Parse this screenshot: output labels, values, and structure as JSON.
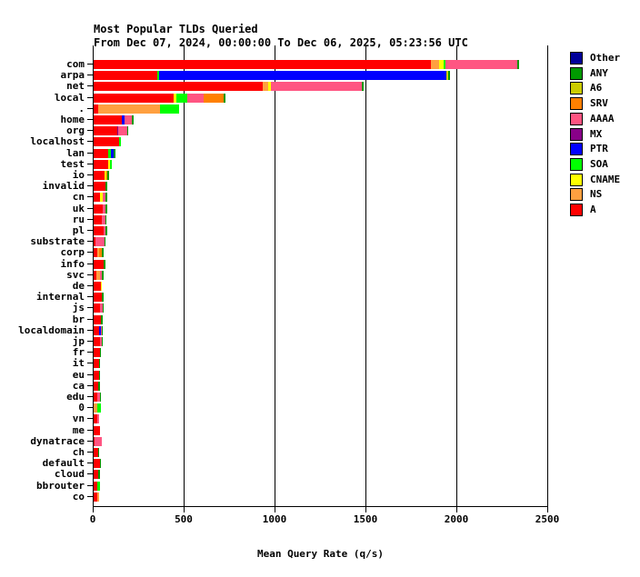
{
  "header": {
    "title": "Most Popular TLDs Queried",
    "subtitle": "From Dec 07, 2024, 00:00:00 To Dec 06, 2025, 05:23:56 UTC"
  },
  "chart_data": {
    "type": "bar",
    "orientation": "horizontal",
    "stacked": true,
    "title": "Most Popular TLDs Queried",
    "subtitle": "From Dec 07, 2024, 00:00:00 To Dec 06, 2025, 05:23:56 UTC",
    "xlabel": "Mean Query Rate (q/s)",
    "ylabel": "",
    "xlim": [
      0,
      2500
    ],
    "xticks": [
      0,
      500,
      1000,
      1500,
      2000,
      2500
    ],
    "grid": "vertical black gridlines at each 500 q/s, right plot border at 2500",
    "legend_position": "top-right",
    "legend": [
      {
        "label": "Other",
        "color": "#000099"
      },
      {
        "label": "ANY",
        "color": "#009900"
      },
      {
        "label": "A6",
        "color": "#CCCC00"
      },
      {
        "label": "SRV",
        "color": "#FF8000"
      },
      {
        "label": "AAAA",
        "color": "#FF5582"
      },
      {
        "label": "MX",
        "color": "#880088"
      },
      {
        "label": "PTR",
        "color": "#0000FF"
      },
      {
        "label": "SOA",
        "color": "#00FF00"
      },
      {
        "label": "CNAME",
        "color": "#FFFF00"
      },
      {
        "label": "NS",
        "color": "#FFA040"
      },
      {
        "label": "A",
        "color": "#FF0000"
      }
    ],
    "colors": {
      "A": "#FF0000",
      "NS": "#FFA040",
      "CNAME": "#FFFF00",
      "SOA": "#00FF00",
      "PTR": "#0000FF",
      "MX": "#880088",
      "AAAA": "#FF5582",
      "SRV": "#FF8000",
      "A6": "#CCCC00",
      "ANY": "#009900",
      "Other": "#000099"
    },
    "stack_order": [
      "A",
      "NS",
      "CNAME",
      "SOA",
      "PTR",
      "MX",
      "AAAA",
      "SRV",
      "A6",
      "ANY",
      "Other"
    ],
    "categories": [
      "com",
      "arpa",
      "net",
      "local",
      ".",
      "home",
      "org",
      "localhost",
      "lan",
      "test",
      "io",
      "invalid",
      "cn",
      "uk",
      "ru",
      "pl",
      "substrate",
      "corp",
      "info",
      "svc",
      "de",
      "internal",
      "js",
      "br",
      "localdomain",
      "jp",
      "fr",
      "it",
      "eu",
      "ca",
      "edu",
      "0",
      "vn",
      "me",
      "dynatrace",
      "ch",
      "default",
      "cloud",
      "bbrouter",
      "co"
    ],
    "rows": [
      {
        "tld": "com",
        "segments": [
          [
            "A",
            1855
          ],
          [
            "NS",
            45
          ],
          [
            "CNAME",
            25
          ],
          [
            "SOA",
            8
          ],
          [
            "AAAA",
            398
          ],
          [
            "ANY",
            10
          ]
        ]
      },
      {
        "tld": "arpa",
        "segments": [
          [
            "A",
            350
          ],
          [
            "SOA",
            12
          ],
          [
            "PTR",
            1580
          ],
          [
            "A6",
            8
          ],
          [
            "ANY",
            8
          ]
        ]
      },
      {
        "tld": "net",
        "segments": [
          [
            "A",
            930
          ],
          [
            "NS",
            30
          ],
          [
            "CNAME",
            15
          ],
          [
            "AAAA",
            500
          ],
          [
            "ANY",
            10
          ]
        ]
      },
      {
        "tld": "local",
        "segments": [
          [
            "A",
            440
          ],
          [
            "CNAME",
            15
          ],
          [
            "SOA",
            60
          ],
          [
            "AAAA",
            90
          ],
          [
            "SRV",
            110
          ],
          [
            "ANY",
            10
          ]
        ]
      },
      {
        "tld": ".",
        "segments": [
          [
            "A",
            24
          ],
          [
            "NS",
            342
          ],
          [
            "SOA",
            103
          ]
        ]
      },
      {
        "tld": "home",
        "segments": [
          [
            "A",
            155
          ],
          [
            "PTR",
            15
          ],
          [
            "AAAA",
            40
          ],
          [
            "ANY",
            10
          ]
        ]
      },
      {
        "tld": "org",
        "segments": [
          [
            "A",
            132
          ],
          [
            "MX",
            5
          ],
          [
            "AAAA",
            48
          ],
          [
            "ANY",
            5
          ]
        ]
      },
      {
        "tld": "localhost",
        "segments": [
          [
            "A",
            140
          ],
          [
            "SOA",
            8
          ]
        ]
      },
      {
        "tld": "lan",
        "segments": [
          [
            "A",
            82
          ],
          [
            "SOA",
            11
          ],
          [
            "PTR",
            15
          ],
          [
            "ANY",
            10
          ]
        ]
      },
      {
        "tld": "test",
        "segments": [
          [
            "A",
            82
          ],
          [
            "CNAME",
            8
          ],
          [
            "SOA",
            10
          ]
        ]
      },
      {
        "tld": "io",
        "segments": [
          [
            "A",
            62
          ],
          [
            "CNAME",
            8
          ],
          [
            "SRV",
            5
          ],
          [
            "ANY",
            8
          ]
        ]
      },
      {
        "tld": "invalid",
        "segments": [
          [
            "A",
            67
          ],
          [
            "ANY",
            10
          ]
        ]
      },
      {
        "tld": "cn",
        "segments": [
          [
            "A",
            33
          ],
          [
            "CNAME",
            17
          ],
          [
            "AAAA",
            17
          ],
          [
            "ANY",
            7
          ]
        ]
      },
      {
        "tld": "uk",
        "segments": [
          [
            "A",
            50
          ],
          [
            "AAAA",
            16
          ],
          [
            "ANY",
            8
          ]
        ]
      },
      {
        "tld": "ru",
        "segments": [
          [
            "A",
            44
          ],
          [
            "AAAA",
            20
          ],
          [
            "ANY",
            7
          ]
        ]
      },
      {
        "tld": "pl",
        "segments": [
          [
            "A",
            54
          ],
          [
            "AAAA",
            13
          ],
          [
            "ANY",
            7
          ]
        ]
      },
      {
        "tld": "substrate",
        "segments": [
          [
            "A",
            10
          ],
          [
            "AAAA",
            52
          ],
          [
            "ANY",
            5
          ]
        ]
      },
      {
        "tld": "corp",
        "segments": [
          [
            "A",
            20
          ],
          [
            "NS",
            8
          ],
          [
            "SRV",
            16
          ],
          [
            "ANY",
            10
          ]
        ]
      },
      {
        "tld": "info",
        "segments": [
          [
            "A",
            57
          ],
          [
            "ANY",
            7
          ]
        ]
      },
      {
        "tld": "svc",
        "segments": [
          [
            "A",
            17
          ],
          [
            "NS",
            17
          ],
          [
            "AAAA",
            10
          ],
          [
            "ANY",
            10
          ]
        ]
      },
      {
        "tld": "de",
        "segments": [
          [
            "A",
            40
          ],
          [
            "CNAME",
            7
          ]
        ]
      },
      {
        "tld": "internal",
        "segments": [
          [
            "A",
            44
          ],
          [
            "ANY",
            13
          ]
        ]
      },
      {
        "tld": "js",
        "segments": [
          [
            "A",
            37
          ],
          [
            "AAAA",
            13
          ],
          [
            "ANY",
            4
          ]
        ]
      },
      {
        "tld": "br",
        "segments": [
          [
            "A",
            40
          ],
          [
            "ANY",
            10
          ]
        ]
      },
      {
        "tld": "localdomain",
        "segments": [
          [
            "A",
            30
          ],
          [
            "PTR",
            10
          ],
          [
            "AAAA",
            5
          ],
          [
            "ANY",
            5
          ]
        ]
      },
      {
        "tld": "jp",
        "segments": [
          [
            "A",
            33
          ],
          [
            "AAAA",
            10
          ],
          [
            "ANY",
            4
          ]
        ]
      },
      {
        "tld": "fr",
        "segments": [
          [
            "A",
            33
          ],
          [
            "ANY",
            7
          ]
        ]
      },
      {
        "tld": "it",
        "segments": [
          [
            "A",
            30
          ],
          [
            "ANY",
            7
          ]
        ]
      },
      {
        "tld": "eu",
        "segments": [
          [
            "A",
            30
          ],
          [
            "ANY",
            7
          ]
        ]
      },
      {
        "tld": "ca",
        "segments": [
          [
            "A",
            27
          ],
          [
            "ANY",
            7
          ]
        ]
      },
      {
        "tld": "edu",
        "segments": [
          [
            "A",
            20
          ],
          [
            "AAAA",
            16
          ],
          [
            "ANY",
            4
          ]
        ]
      },
      {
        "tld": "0",
        "segments": [
          [
            "NS",
            20
          ],
          [
            "SOA",
            20
          ]
        ]
      },
      {
        "tld": "vn",
        "segments": [
          [
            "A",
            20
          ],
          [
            "AAAA",
            10
          ]
        ]
      },
      {
        "tld": "me",
        "segments": [
          [
            "A",
            37
          ]
        ]
      },
      {
        "tld": "dynatrace",
        "segments": [
          [
            "A",
            5
          ],
          [
            "AAAA",
            38
          ]
        ]
      },
      {
        "tld": "ch",
        "segments": [
          [
            "A",
            24
          ],
          [
            "ANY",
            6
          ]
        ]
      },
      {
        "tld": "default",
        "segments": [
          [
            "A",
            37
          ],
          [
            "ANY",
            3
          ]
        ]
      },
      {
        "tld": "cloud",
        "segments": [
          [
            "A",
            27
          ],
          [
            "ANY",
            7
          ]
        ]
      },
      {
        "tld": "bbrouter",
        "segments": [
          [
            "A",
            20
          ],
          [
            "SOA",
            13
          ]
        ]
      },
      {
        "tld": "co",
        "segments": [
          [
            "A",
            20
          ],
          [
            "NS",
            10
          ]
        ]
      }
    ]
  }
}
